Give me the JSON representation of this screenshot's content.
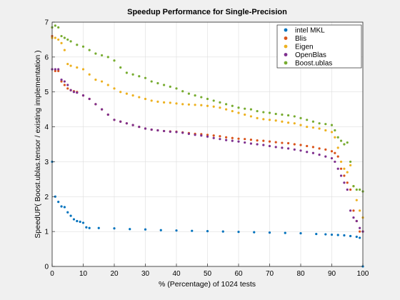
{
  "chart_data": {
    "type": "scatter",
    "title": "Speedup Performance for Single-Precision",
    "xlabel": "% (Percentage) of 1024 tests",
    "ylabel": "SpeedUP( Boost.ublas.tensor / existing implementation  )",
    "xlim": [
      0,
      100
    ],
    "ylim": [
      0,
      7
    ],
    "xticks": [
      0,
      10,
      20,
      30,
      40,
      50,
      60,
      70,
      80,
      90,
      100
    ],
    "yticks": [
      0,
      1,
      2,
      3,
      4,
      5,
      6,
      7
    ],
    "grid": true,
    "legend_position": "top-right",
    "series": [
      {
        "name": "intel MKL",
        "color": "#0072bd",
        "x": [
          0,
          1,
          2,
          3,
          4,
          5,
          6,
          7,
          8,
          9,
          10,
          11,
          12,
          15,
          20,
          25,
          30,
          35,
          40,
          45,
          50,
          55,
          60,
          65,
          70,
          75,
          80,
          85,
          88,
          90,
          92,
          94,
          96,
          98,
          99,
          100
        ],
        "y": [
          3.0,
          2.0,
          1.85,
          1.72,
          1.7,
          1.55,
          1.45,
          1.35,
          1.3,
          1.28,
          1.25,
          1.12,
          1.1,
          1.1,
          1.09,
          1.07,
          1.06,
          1.04,
          1.03,
          1.02,
          1.01,
          1.0,
          0.99,
          0.98,
          0.97,
          0.96,
          0.95,
          0.93,
          0.92,
          0.91,
          0.9,
          0.89,
          0.87,
          0.85,
          0.82,
          0.0
        ]
      },
      {
        "name": "Blis",
        "color": "#d95319",
        "x": [
          0,
          1,
          2,
          3,
          4,
          5,
          6,
          7,
          8,
          10,
          12,
          14,
          16,
          18,
          20,
          22,
          24,
          26,
          28,
          30,
          32,
          34,
          36,
          38,
          40,
          42,
          44,
          46,
          48,
          50,
          52,
          54,
          56,
          58,
          60,
          62,
          64,
          66,
          68,
          70,
          72,
          74,
          76,
          78,
          80,
          82,
          84,
          86,
          88,
          90,
          91,
          92,
          93,
          94,
          95,
          96,
          97,
          98,
          99,
          100
        ],
        "y": [
          6.6,
          5.6,
          5.6,
          5.3,
          5.2,
          5.1,
          5.05,
          5.02,
          5.0,
          4.9,
          4.8,
          4.65,
          4.5,
          4.35,
          4.2,
          4.15,
          4.1,
          4.05,
          4.0,
          3.95,
          3.92,
          3.9,
          3.88,
          3.87,
          3.86,
          3.84,
          3.82,
          3.8,
          3.79,
          3.77,
          3.75,
          3.73,
          3.7,
          3.68,
          3.66,
          3.65,
          3.63,
          3.61,
          3.6,
          3.58,
          3.56,
          3.54,
          3.53,
          3.5,
          3.48,
          3.45,
          3.42,
          3.38,
          3.35,
          3.3,
          3.25,
          3.15,
          2.8,
          2.6,
          2.4,
          2.2,
          1.6,
          1.3,
          1.0,
          1.0
        ]
      },
      {
        "name": "Eigen",
        "color": "#edb120",
        "x": [
          0,
          1,
          2,
          3,
          4,
          5,
          6,
          8,
          10,
          12,
          14,
          16,
          18,
          20,
          22,
          24,
          26,
          28,
          30,
          32,
          34,
          36,
          38,
          40,
          42,
          44,
          46,
          48,
          50,
          52,
          54,
          56,
          58,
          60,
          62,
          64,
          66,
          68,
          70,
          72,
          74,
          76,
          78,
          80,
          82,
          84,
          86,
          88,
          90,
          91,
          92,
          93,
          94,
          95,
          96,
          97,
          98,
          99,
          100
        ],
        "y": [
          6.55,
          6.55,
          6.5,
          6.4,
          6.2,
          5.8,
          5.75,
          5.7,
          5.65,
          5.5,
          5.35,
          5.3,
          5.2,
          5.1,
          5.0,
          4.95,
          4.9,
          4.85,
          4.8,
          4.75,
          4.72,
          4.7,
          4.69,
          4.67,
          4.65,
          4.64,
          4.63,
          4.62,
          4.6,
          4.58,
          4.55,
          4.5,
          4.45,
          4.4,
          4.35,
          4.3,
          4.25,
          4.22,
          4.2,
          4.18,
          4.15,
          4.12,
          4.1,
          4.05,
          4.0,
          3.98,
          3.95,
          3.9,
          3.85,
          3.7,
          3.4,
          3.0,
          2.8,
          2.7,
          2.9,
          2.3,
          1.9,
          1.6,
          1.4
        ]
      },
      {
        "name": "OpenBlas",
        "color": "#7e2f8e",
        "x": [
          0,
          1,
          2,
          3,
          4,
          5,
          6,
          7,
          8,
          10,
          12,
          14,
          16,
          18,
          20,
          22,
          24,
          26,
          28,
          30,
          32,
          34,
          36,
          38,
          40,
          42,
          44,
          46,
          48,
          50,
          52,
          54,
          56,
          58,
          60,
          62,
          64,
          66,
          68,
          70,
          72,
          74,
          76,
          78,
          80,
          82,
          84,
          86,
          88,
          90,
          91,
          92,
          93,
          94,
          95,
          96,
          97,
          98,
          99,
          100
        ],
        "y": [
          5.65,
          5.65,
          5.65,
          5.35,
          5.3,
          5.2,
          5.05,
          5.0,
          4.98,
          4.9,
          4.8,
          4.65,
          4.5,
          4.35,
          4.2,
          4.15,
          4.1,
          4.05,
          4.0,
          3.95,
          3.92,
          3.9,
          3.88,
          3.86,
          3.85,
          3.83,
          3.8,
          3.77,
          3.75,
          3.72,
          3.68,
          3.65,
          3.62,
          3.6,
          3.58,
          3.55,
          3.52,
          3.5,
          3.48,
          3.45,
          3.42,
          3.4,
          3.38,
          3.35,
          3.32,
          3.28,
          3.25,
          3.2,
          3.15,
          3.1,
          3.0,
          2.8,
          2.6,
          2.4,
          2.2,
          1.6,
          1.4,
          1.3,
          1.1,
          1.0
        ]
      },
      {
        "name": "Boost.ublas",
        "color": "#77ac30",
        "x": [
          0,
          1,
          2,
          3,
          4,
          5,
          6,
          8,
          10,
          12,
          14,
          16,
          18,
          20,
          22,
          24,
          26,
          28,
          30,
          32,
          34,
          36,
          38,
          40,
          42,
          44,
          46,
          48,
          50,
          52,
          54,
          56,
          58,
          60,
          62,
          64,
          66,
          68,
          70,
          72,
          74,
          76,
          78,
          80,
          82,
          84,
          86,
          88,
          90,
          91,
          92,
          93,
          94,
          95,
          96,
          97,
          98,
          99,
          100
        ],
        "y": [
          6.85,
          6.9,
          6.85,
          6.6,
          6.55,
          6.5,
          6.45,
          6.35,
          6.3,
          6.2,
          6.1,
          6.05,
          6.0,
          5.9,
          5.7,
          5.55,
          5.5,
          5.45,
          5.4,
          5.3,
          5.25,
          5.2,
          5.15,
          5.1,
          5.02,
          4.95,
          4.9,
          4.85,
          4.8,
          4.75,
          4.7,
          4.65,
          4.6,
          4.55,
          4.52,
          4.5,
          4.45,
          4.42,
          4.4,
          4.37,
          4.35,
          4.33,
          4.3,
          4.25,
          4.2,
          4.15,
          4.1,
          4.08,
          4.05,
          3.9,
          3.7,
          3.6,
          3.5,
          3.55,
          3.0,
          2.3,
          2.2,
          2.2,
          2.15
        ]
      }
    ]
  }
}
